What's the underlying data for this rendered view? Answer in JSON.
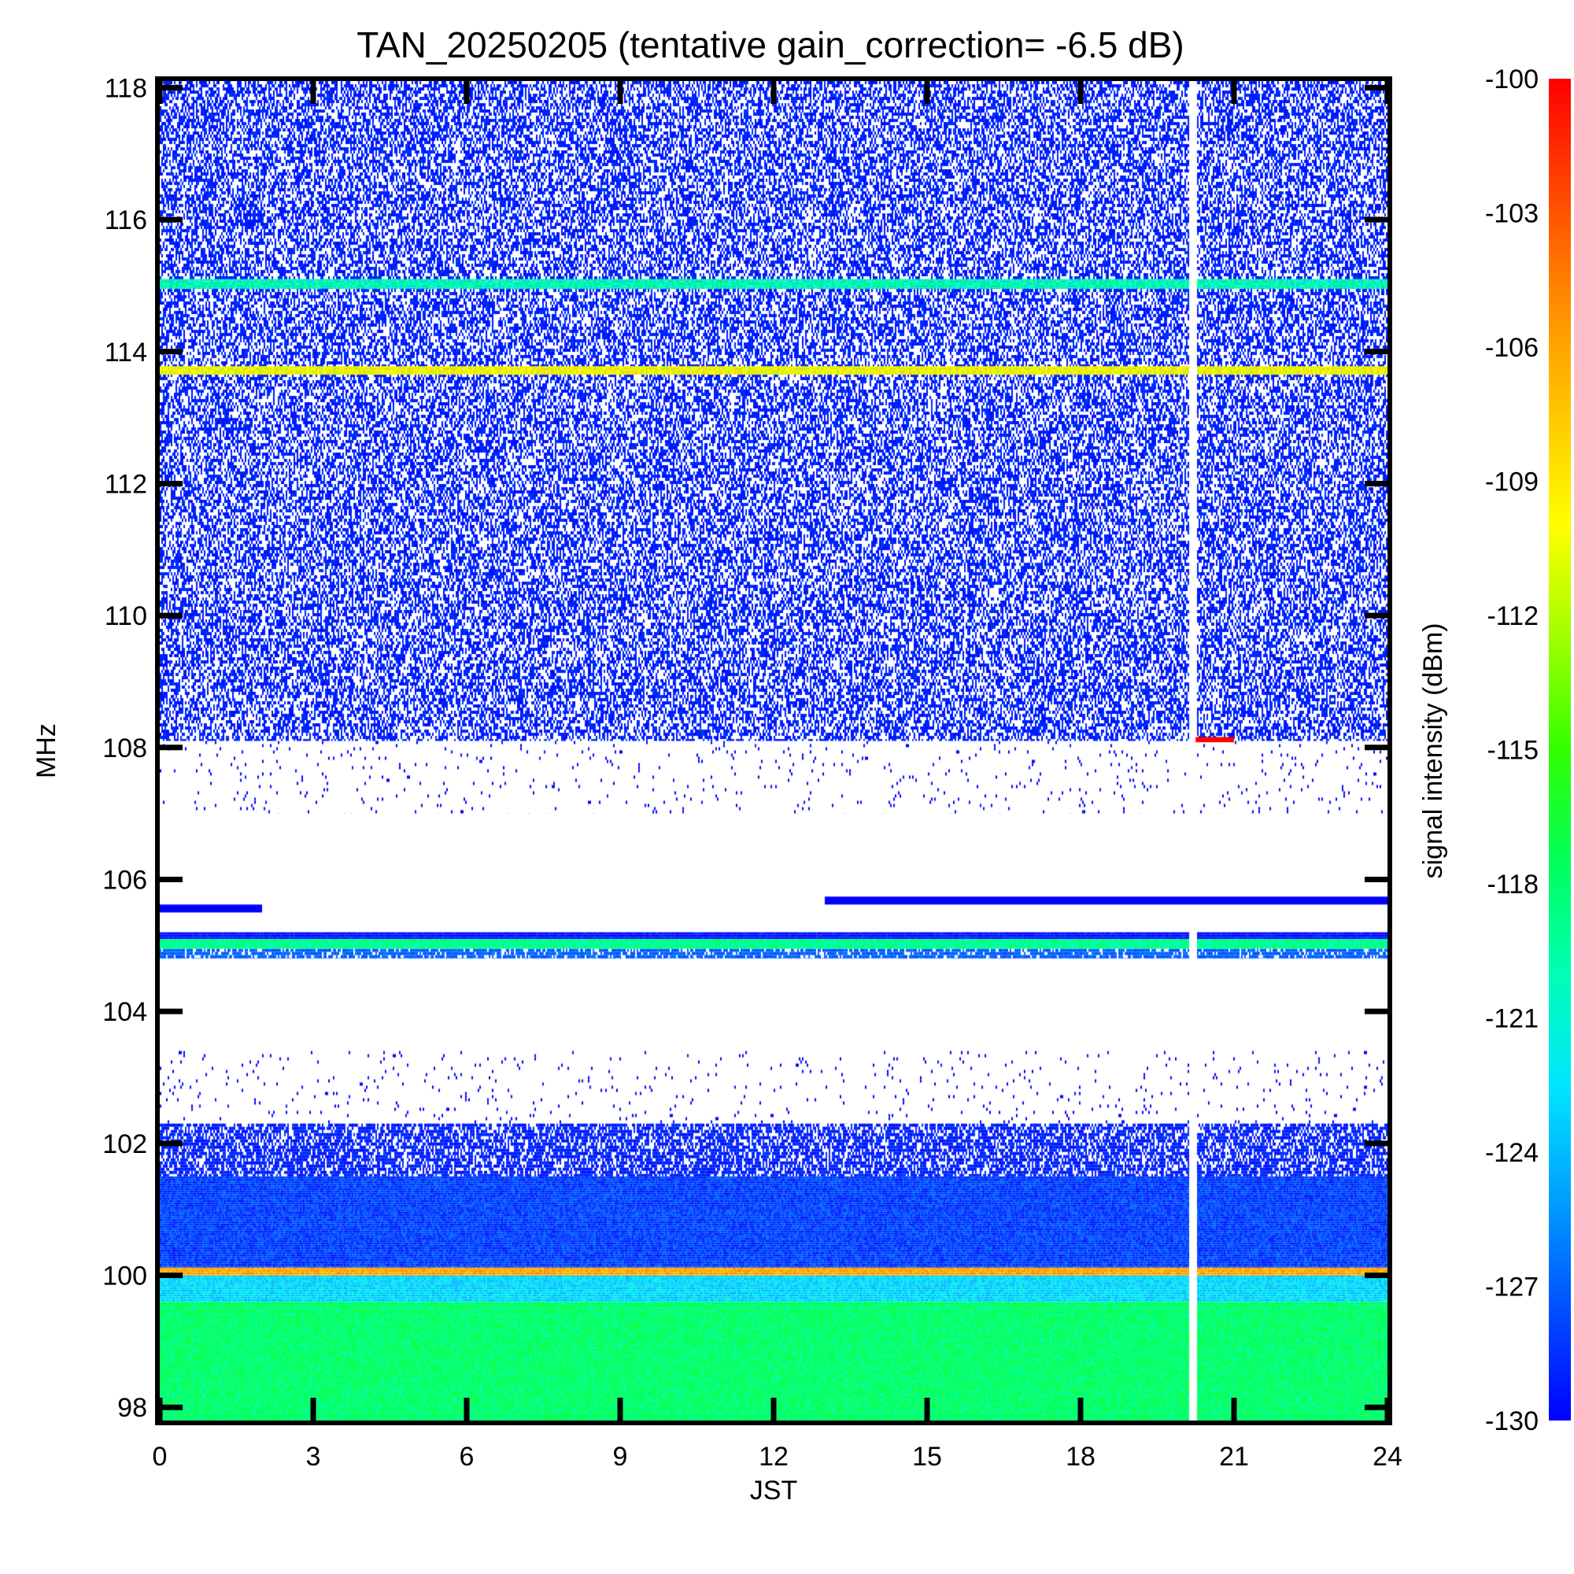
{
  "chart_data": {
    "type": "heatmap",
    "title": "TAN_20250205 (tentative gain_correction= -6.5 dB)",
    "xlabel": "JST",
    "ylabel": "MHz",
    "colorbar_label": "signal intensity (dBm)",
    "xlim": [
      0,
      24
    ],
    "ylim": [
      97.8,
      118.1
    ],
    "clim": [
      -130,
      -100
    ],
    "x_ticks": [
      "0",
      "3",
      "6",
      "9",
      "12",
      "15",
      "18",
      "21",
      "24"
    ],
    "y_ticks": [
      "98",
      "100",
      "102",
      "104",
      "106",
      "108",
      "110",
      "112",
      "114",
      "116",
      "118"
    ],
    "colorbar_ticks": [
      "-100",
      "-103",
      "-106",
      "-109",
      "-112",
      "-115",
      "-118",
      "-121",
      "-124",
      "-127",
      "-130"
    ],
    "colorscale": [
      "#0000ff",
      "#0050ff",
      "#00a0ff",
      "#00e6ff",
      "#00ffb4",
      "#00ff5a",
      "#32ff00",
      "#a0ff00",
      "#ffff00",
      "#ffc800",
      "#ff8c00",
      "#ff4600",
      "#ff0000"
    ],
    "data_gap_jst": [
      20.1,
      20.25
    ],
    "bands": [
      {
        "freq_mhz": [
          97.8,
          99.6
        ],
        "level_dbm": -118,
        "density": 1.0
      },
      {
        "freq_mhz": [
          99.6,
          100.0
        ],
        "level_dbm": -123,
        "density": 1.0
      },
      {
        "freq_mhz": [
          100.0,
          100.12
        ],
        "level_dbm": -106,
        "density": 1.0
      },
      {
        "freq_mhz": [
          100.12,
          101.5
        ],
        "level_dbm": -128,
        "density": 1.0
      },
      {
        "freq_mhz": [
          101.5,
          102.3
        ],
        "level_dbm": -129,
        "density": 0.7
      },
      {
        "freq_mhz": [
          102.3,
          103.4
        ],
        "level_dbm": -130,
        "density": 0.03
      },
      {
        "freq_mhz": [
          104.8,
          104.95
        ],
        "level_dbm": -127,
        "density": 0.8
      },
      {
        "freq_mhz": [
          104.95,
          105.1
        ],
        "level_dbm": -119,
        "density": 1.0
      },
      {
        "freq_mhz": [
          105.1,
          105.2
        ],
        "level_dbm": -130,
        "density": 1.0
      },
      {
        "freq_mhz": [
          107.0,
          108.1
        ],
        "level_dbm": -130,
        "density": 0.03
      },
      {
        "freq_mhz": [
          108.1,
          118.1
        ],
        "level_dbm": -129,
        "density": 0.55
      },
      {
        "freq_mhz": [
          113.65,
          113.78
        ],
        "level_dbm": -110,
        "density": 1.0
      },
      {
        "freq_mhz": [
          114.95,
          115.1
        ],
        "level_dbm": -120,
        "density": 1.0
      }
    ],
    "partial_bands": [
      {
        "freq_mhz": [
          105.5,
          105.62
        ],
        "jst": [
          0.0,
          2.0
        ],
        "level_dbm": -130
      },
      {
        "freq_mhz": [
          105.62,
          105.74
        ],
        "jst": [
          13.0,
          24.0
        ],
        "level_dbm": -130
      },
      {
        "freq_mhz": [
          108.08,
          108.16
        ],
        "jst": [
          20.25,
          21.0
        ],
        "level_dbm": -100
      }
    ]
  }
}
